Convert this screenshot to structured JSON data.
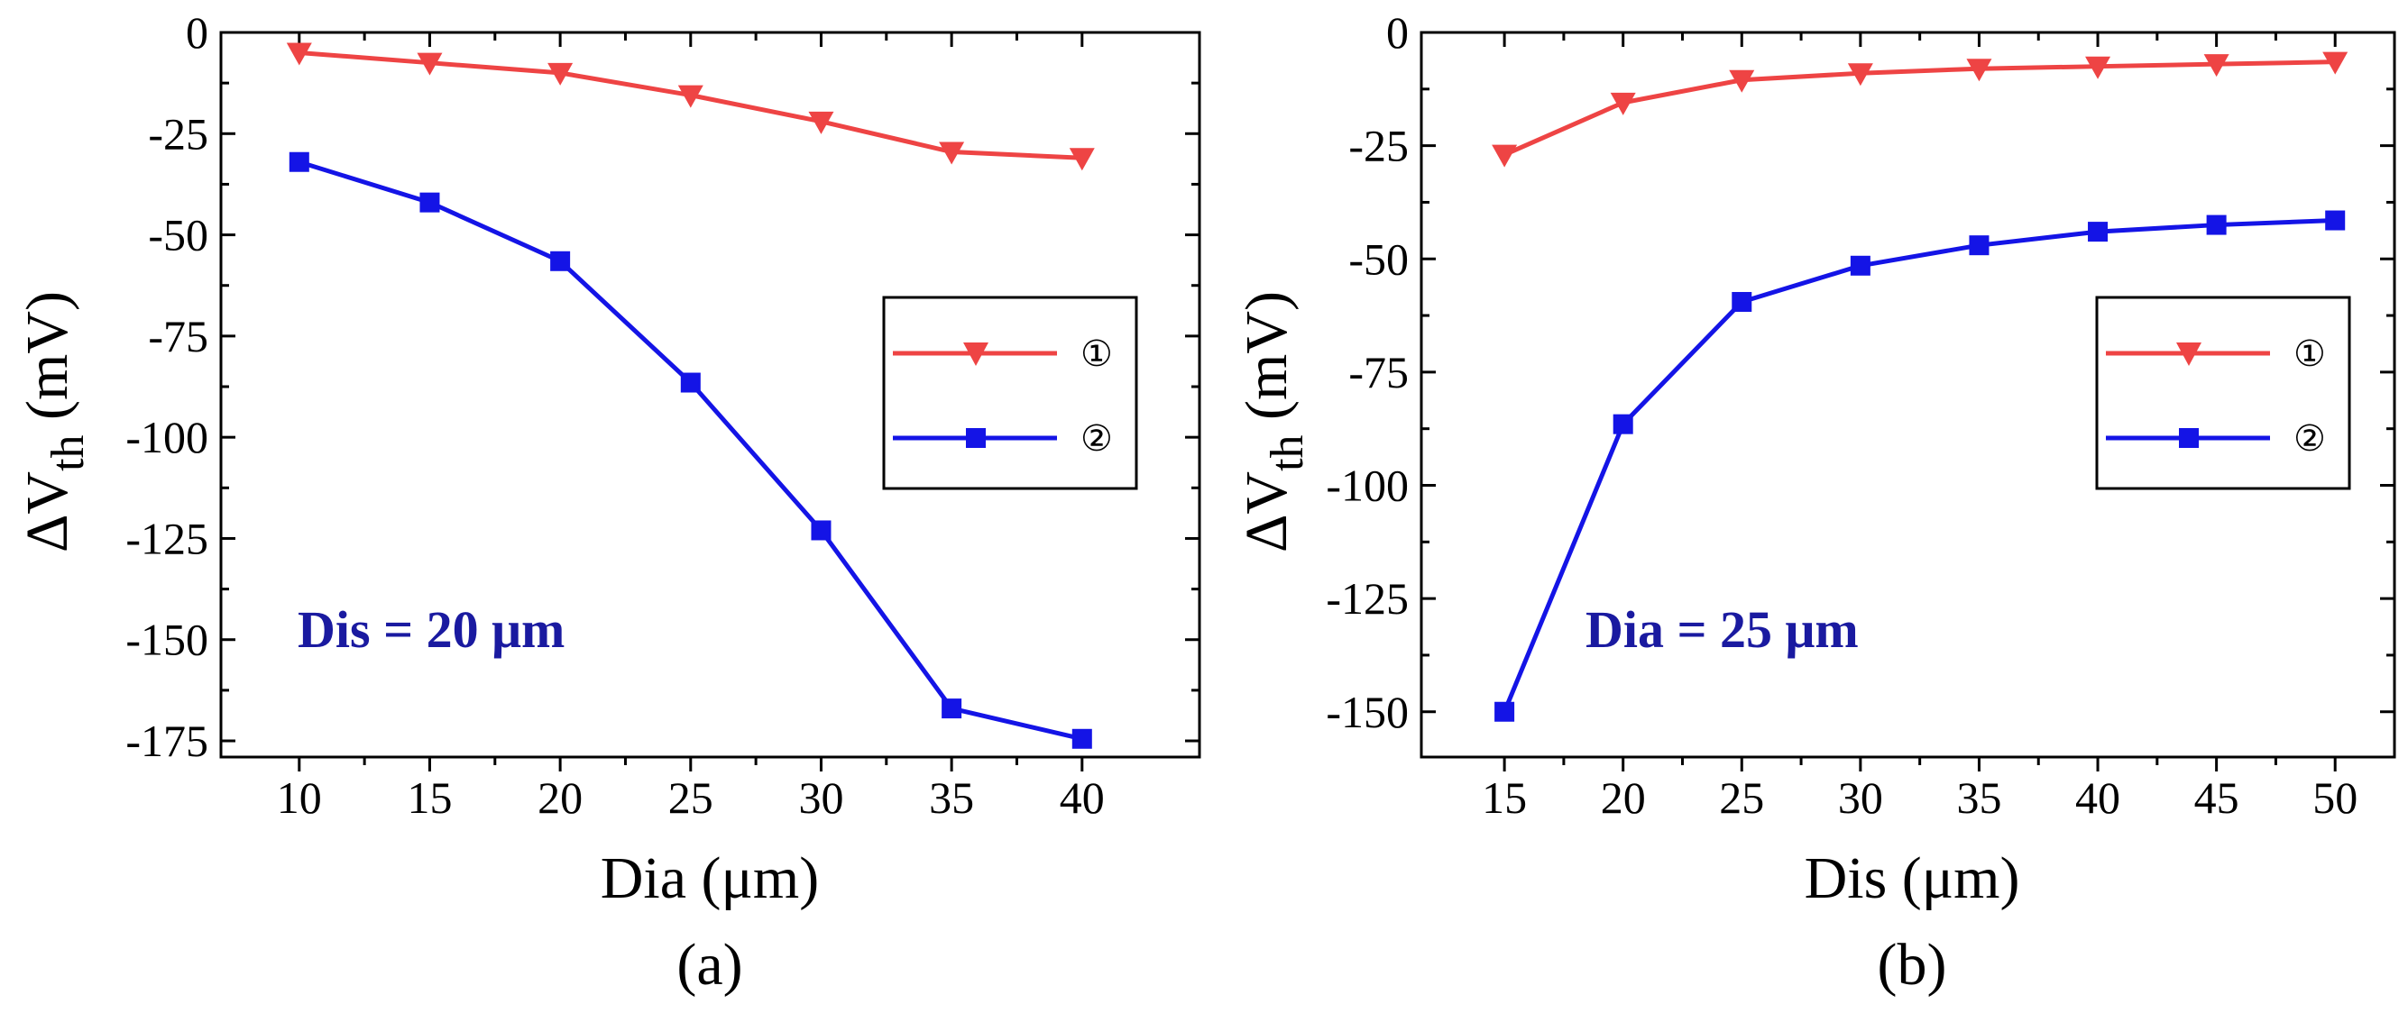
{
  "chart_data": [
    {
      "type": "line",
      "caption": "(a)",
      "xlabel": "Dia (μm)",
      "ylabel_main": "ΔV",
      "ylabel_sub": "th",
      "ylabel_unit": " (mV)",
      "x": [
        10,
        15,
        20,
        25,
        30,
        35,
        40
      ],
      "x_ticks": [
        "10",
        "15",
        "20",
        "25",
        "30",
        "35",
        "40"
      ],
      "y_ticks": [
        "0",
        "-25",
        "-50",
        "-75",
        "-100",
        "-125",
        "-150",
        "-175"
      ],
      "xlim": [
        7,
        44.5
      ],
      "ylim": [
        -179,
        0
      ],
      "annotation": "Dis = 20 μm",
      "legend_position": "right",
      "series": [
        {
          "name": "①",
          "marker": "triangle-down",
          "color": "#ee4444",
          "values": [
            -5,
            -7.5,
            -10,
            -15.5,
            -22,
            -29.5,
            -31
          ]
        },
        {
          "name": "②",
          "marker": "square",
          "color": "#1414e6",
          "values": [
            -32,
            -42,
            -56.5,
            -86.5,
            -123,
            -167,
            -174.5
          ]
        }
      ]
    },
    {
      "type": "line",
      "caption": "(b)",
      "xlabel": "Dis (μm)",
      "ylabel_main": "ΔV",
      "ylabel_sub": "th",
      "ylabel_unit": " (mV)",
      "x": [
        15,
        20,
        25,
        30,
        35,
        40,
        45,
        50
      ],
      "x_ticks": [
        "15",
        "20",
        "25",
        "30",
        "35",
        "40",
        "45",
        "50"
      ],
      "y_ticks": [
        "0",
        "-25",
        "-50",
        "-75",
        "-100",
        "-125",
        "-150"
      ],
      "xlim": [
        11.5,
        52.5
      ],
      "ylim": [
        -160,
        0
      ],
      "annotation": "Dia = 25 μm",
      "legend_position": "right",
      "series": [
        {
          "name": "①",
          "marker": "triangle-down",
          "color": "#ee4444",
          "values": [
            -27,
            -15.5,
            -10.5,
            -9,
            -8,
            -7.5,
            -7,
            -6.5
          ]
        },
        {
          "name": "②",
          "marker": "square",
          "color": "#1414e6",
          "values": [
            -150,
            -86.5,
            -59.5,
            -51.5,
            -47,
            -44,
            -42.5,
            -41.5
          ]
        }
      ]
    }
  ]
}
